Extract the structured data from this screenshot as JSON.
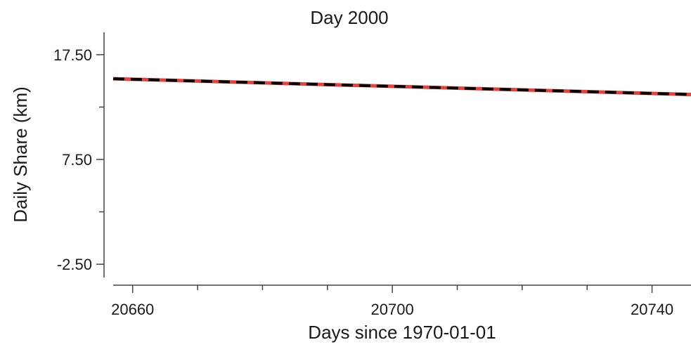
{
  "chart_data": {
    "type": "line",
    "title": "Day 2000",
    "xlabel": "Days since 1970-01-01",
    "ylabel": "Daily Share (km)",
    "xlim": [
      20657,
      20746
    ],
    "ylim": [
      -4.5,
      19.5
    ],
    "x_ticks": [
      20660,
      20700,
      20740
    ],
    "x_tick_labels": [
      "20660",
      "20700",
      "20740"
    ],
    "x_minor_ticks": [
      20670,
      20680,
      20690,
      20710,
      20720,
      20730
    ],
    "y_ticks": [
      17.5,
      7.5,
      -2.5
    ],
    "y_tick_labels": [
      "17.50",
      "7.50",
      "-2.50"
    ],
    "y_minor_ticks": [
      12.5,
      2.5
    ],
    "grid": false,
    "legend": "none",
    "series": [
      {
        "color": "#e8413c",
        "style": "solid",
        "x": [
          20657,
          20746
        ],
        "y": [
          15.2,
          13.7
        ]
      },
      {
        "color": "#000000",
        "style": "dashed",
        "x": [
          20657,
          20746
        ],
        "y": [
          15.2,
          13.7
        ]
      }
    ]
  }
}
